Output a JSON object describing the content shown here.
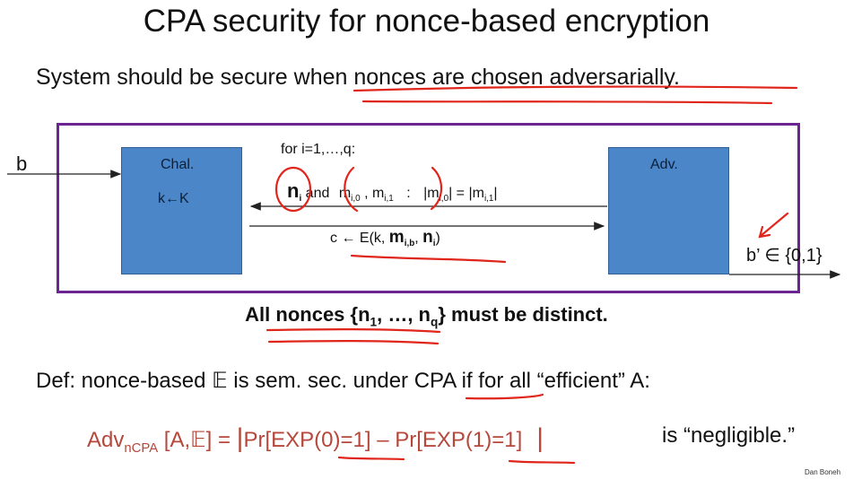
{
  "title": "CPA security for nonce-based encryption",
  "subtitle": "System should be secure when nonces are chosen adversarially.",
  "diagram": {
    "input_label": "b",
    "chal_label": "Chal.",
    "key_label": "k←K",
    "adv_label": "Adv.",
    "loop_label": "for i=1,…,q:",
    "query": {
      "nonce_n": "n",
      "nonce_i": "i",
      "and_text": "and",
      "m0_base": "m",
      "m0_sub": "i,0",
      "comma": " , ",
      "m1_base": "m",
      "m1_sub": "i,1",
      "colon": ":",
      "len_eq_1": "|m",
      "len_sub_0": "i,0",
      "len_eq_2": "| = |m",
      "len_sub_1": "i,1",
      "len_eq_3": "|"
    },
    "response": {
      "prefix": "c ← E(k, ",
      "m_base": "m",
      "m_sub": "i,b",
      "sep": ", ",
      "n_base": "n",
      "n_sub": "i",
      "close": ")"
    },
    "output_label": "b’ ∈ {0,1}"
  },
  "distinct": {
    "prefix": "All nonces {n",
    "sub1": "1",
    "middle": ", …, n",
    "subq": "q",
    "suffix": "}  must be distinct."
  },
  "definition": {
    "prefix": "Def: nonce-based ",
    "symbol": "𝔼",
    "suffix": " is sem. sec. under CPA if for all “efficient”  A:"
  },
  "formula": {
    "adv": "Adv",
    "sub": "nCPA",
    "args": " [A,𝔼]  =  ",
    "bar_open": "|",
    "expr": "Pr[EXP(0)=1] – Pr[EXP(1)=1]",
    "bar_close": "|",
    "negligible": "is “negligible.”"
  },
  "credit": "Dan Boneh",
  "colors": {
    "frame": "#6a2590",
    "box": "#4a86c8",
    "ink_red": "#b5473b",
    "annotation": "#e0251b"
  }
}
